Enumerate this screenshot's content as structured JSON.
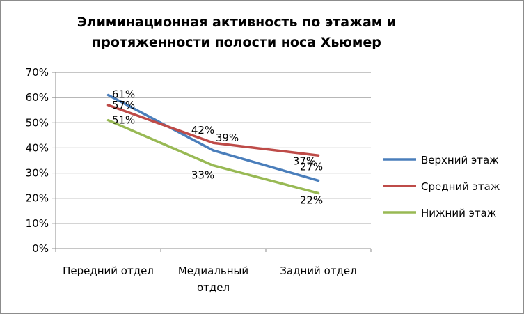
{
  "chart_data": {
    "type": "line",
    "title_lines": [
      "Элиминационная активность по этажам и",
      "протяженности полости носа Хьюмер"
    ],
    "categories": [
      [
        "Передний отдел"
      ],
      [
        "Медиальный",
        "отдел"
      ],
      [
        "Задний отдел"
      ]
    ],
    "y_ticks": [
      "0%",
      "10%",
      "20%",
      "30%",
      "40%",
      "50%",
      "60%",
      "70%"
    ],
    "ylim": [
      0,
      70
    ],
    "grid": "horizontal",
    "legend_position": "right",
    "series": [
      {
        "name": "Верхний этаж",
        "color": "#4a7ebb",
        "values": [
          61,
          39,
          27
        ],
        "labels": [
          "61%",
          "39%",
          "27%"
        ]
      },
      {
        "name": "Средний этаж",
        "color": "#be4b48",
        "values": [
          57,
          42,
          37
        ],
        "labels": [
          "57%",
          "42%",
          "37%"
        ]
      },
      {
        "name": "Нижний этаж",
        "color": "#98b954",
        "values": [
          51,
          33,
          22
        ],
        "labels": [
          "51%",
          "33%",
          "22%"
        ]
      }
    ]
  }
}
